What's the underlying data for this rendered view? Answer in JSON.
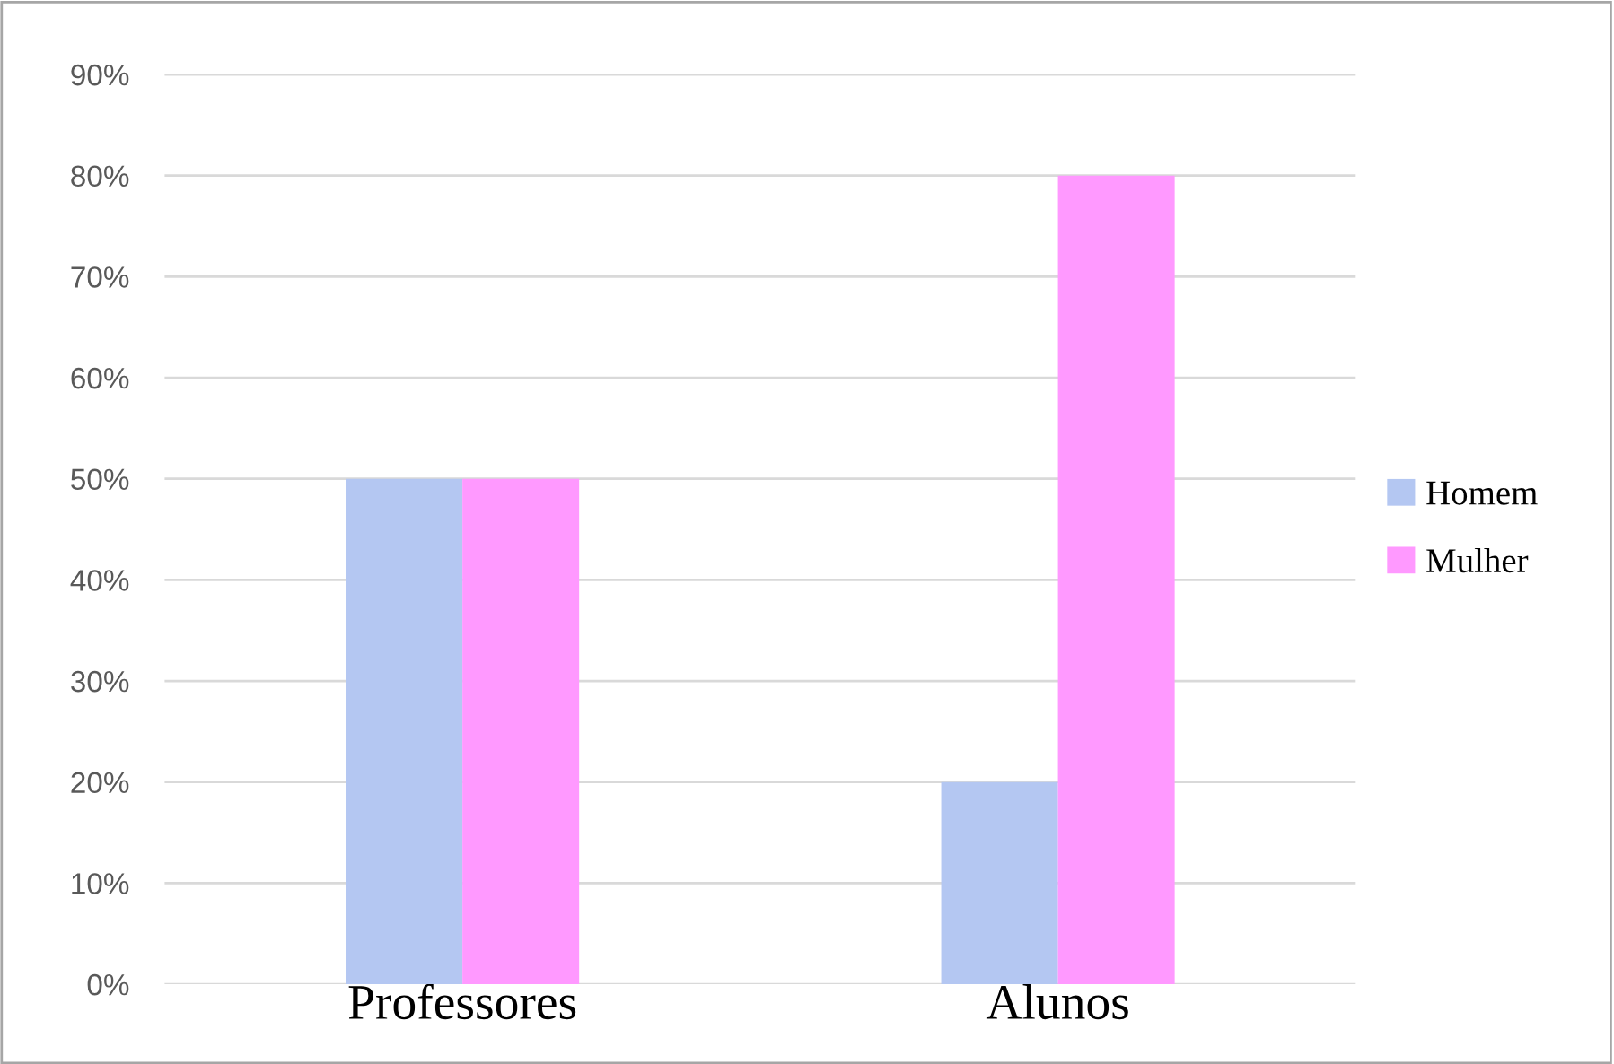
{
  "chart_data": {
    "type": "bar",
    "categories": [
      "Professores",
      "Alunos"
    ],
    "series": [
      {
        "name": "Homem",
        "color": "#b4c7f2",
        "values": [
          50,
          20
        ]
      },
      {
        "name": "Mulher",
        "color": "#ff99ff",
        "values": [
          50,
          80
        ]
      }
    ],
    "ylim": [
      0,
      90
    ],
    "yticks": [
      {
        "value": 0,
        "label": "0%"
      },
      {
        "value": 10,
        "label": "10%"
      },
      {
        "value": 20,
        "label": "20%"
      },
      {
        "value": 30,
        "label": "30%"
      },
      {
        "value": 40,
        "label": "40%"
      },
      {
        "value": 50,
        "label": "50%"
      },
      {
        "value": 60,
        "label": "60%"
      },
      {
        "value": 70,
        "label": "70%"
      },
      {
        "value": 80,
        "label": "80%"
      },
      {
        "value": 90,
        "label": "90%"
      }
    ],
    "grid": "y",
    "legend": "right"
  }
}
